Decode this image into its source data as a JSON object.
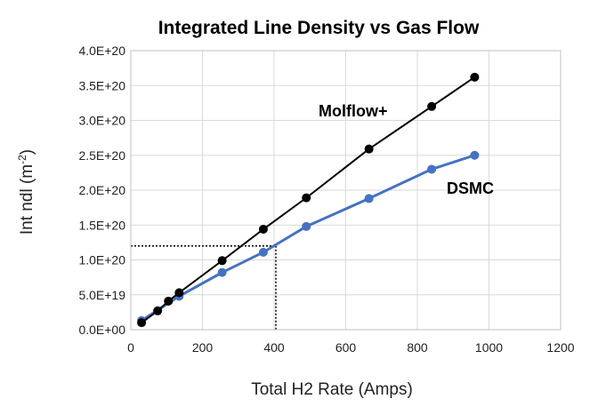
{
  "chart_data": {
    "type": "line",
    "title": "Integrated Line Density vs Gas Flow",
    "xlabel": "Total H2 Rate (Amps)",
    "ylabel_main": "Int ndl (m",
    "ylabel_sup": "-2",
    "ylabel_close": ")",
    "xlim": [
      0,
      1200
    ],
    "ylim": [
      0,
      4e+20
    ],
    "x_ticks": [
      0,
      200,
      400,
      600,
      800,
      1000,
      1200
    ],
    "x_tick_labels": [
      "0",
      "200",
      "400",
      "600",
      "800",
      "1000",
      "1200"
    ],
    "y_ticks": [
      0,
      5e+19,
      1e+20,
      1.5e+20,
      2e+20,
      2.5e+20,
      3e+20,
      3.5e+20,
      4e+20
    ],
    "y_tick_labels": [
      "0.0E+00",
      "5.0E+19",
      "1.0E+20",
      "1.5E+20",
      "2.0E+20",
      "2.5E+20",
      "3.0E+20",
      "3.5E+20",
      "4.0E+20"
    ],
    "grid": true,
    "series": [
      {
        "name": "DSMC",
        "color": "#4472C4",
        "x": [
          30,
          135,
          255,
          370,
          490,
          665,
          840,
          960
        ],
        "y": [
          1.3e+19,
          4.8e+19,
          8.2e+19,
          1.11e+20,
          1.48e+20,
          1.88e+20,
          2.3e+20,
          2.5e+20
        ]
      },
      {
        "name": "Molflow+",
        "color": "#000000",
        "x": [
          30,
          75,
          105,
          135,
          255,
          370,
          490,
          665,
          840,
          960
        ],
        "y": [
          1e+19,
          2.7e+19,
          4.1e+19,
          5.3e+19,
          9.9e+19,
          1.44e+20,
          1.89e+20,
          2.59e+20,
          3.2e+20,
          3.62e+20
        ]
      }
    ],
    "reference_lines": {
      "x": 405,
      "y": 1.2e+20,
      "style": "dotted"
    }
  }
}
